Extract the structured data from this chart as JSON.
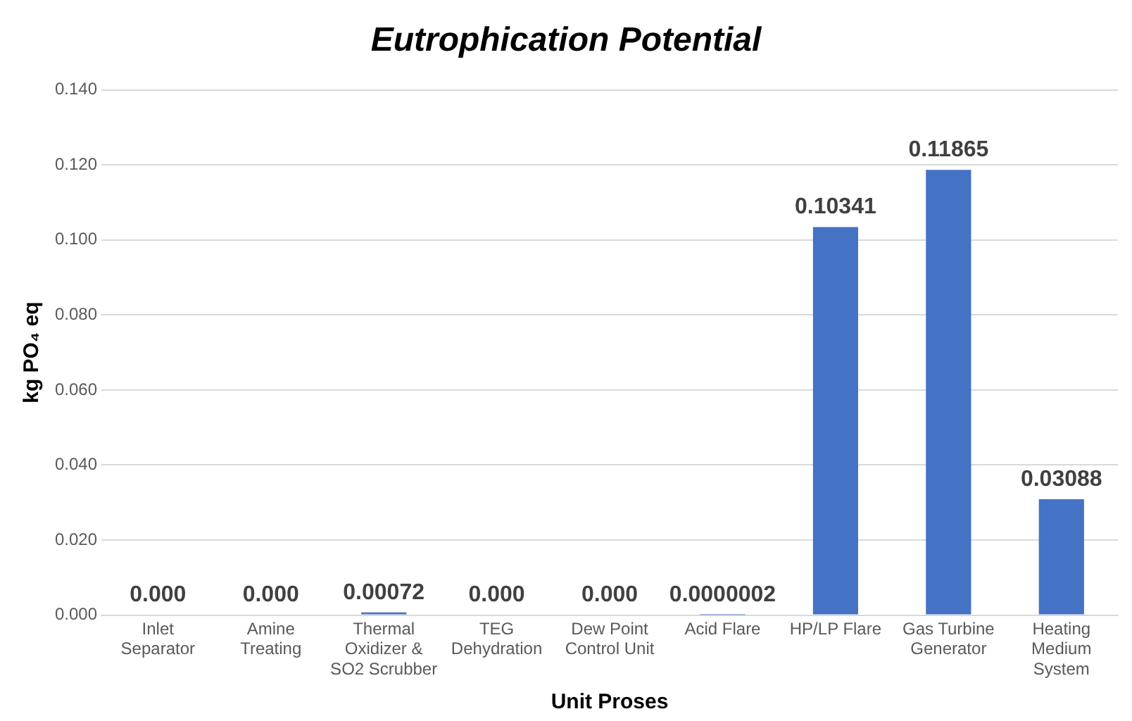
{
  "chart_data": {
    "type": "bar",
    "title": "Eutrophication Potential",
    "xlabel": "Unit Proses",
    "ylabel": "kg PO₄ eq",
    "categories": [
      "Inlet Separator",
      "Amine Treating",
      "Thermal Oxidizer & SO2 Scrubber",
      "TEG Dehydration",
      "Dew Point Control Unit",
      "Acid Flare",
      "HP/LP Flare",
      "Gas Turbine Generator",
      "Heating Medium System"
    ],
    "values": [
      0,
      0,
      0.00072,
      0,
      0,
      2e-07,
      0.10341,
      0.11865,
      0.03088
    ],
    "value_labels": [
      "0.000",
      "0.000",
      "0.00072",
      "0.000",
      "0.000",
      "0.0000002",
      "0.10341",
      "0.11865",
      "0.03088"
    ],
    "color": "#4472c4",
    "ylim": [
      0,
      0.14
    ],
    "yticks": [
      {
        "value": 0,
        "label": "0.000"
      },
      {
        "value": 0.02,
        "label": "0.020"
      },
      {
        "value": 0.04,
        "label": "0.040"
      },
      {
        "value": 0.06,
        "label": "0.060"
      },
      {
        "value": 0.08,
        "label": "0.080"
      },
      {
        "value": 0.1,
        "label": "0.100"
      },
      {
        "value": 0.12,
        "label": "0.120"
      },
      {
        "value": 0.14,
        "label": "0.140"
      }
    ],
    "grid": "y"
  }
}
